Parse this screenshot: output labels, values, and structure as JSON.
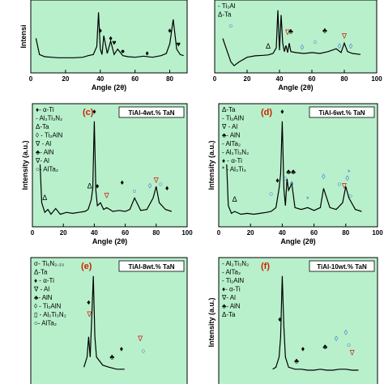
{
  "chart_data": [
    {
      "id": "a",
      "type": "line",
      "panel_label": "",
      "title": "",
      "xlabel": "Angle (2θ)",
      "ylabel": "Intensi",
      "xticks": [
        "0",
        "20",
        "40",
        "60",
        "80"
      ],
      "xlim": [
        0,
        90
      ],
      "legend": [],
      "x": [
        3,
        5,
        8,
        12,
        16,
        20,
        25,
        30,
        33,
        36,
        38,
        39,
        40,
        41,
        42,
        44,
        46,
        48,
        50,
        53,
        56,
        60,
        65,
        70,
        75,
        78,
        80,
        82,
        84,
        86,
        88
      ],
      "y": [
        50,
        20,
        16,
        15,
        14,
        14,
        14,
        15,
        18,
        20,
        35,
        98,
        30,
        20,
        55,
        22,
        45,
        20,
        30,
        18,
        16,
        15,
        17,
        15,
        18,
        22,
        40,
        85,
        30,
        20,
        18
      ],
      "markers": [
        {
          "x": 40,
          "y": 60,
          "symbol": "♦"
        },
        {
          "x": 46,
          "y": 46,
          "symbol": "♦"
        },
        {
          "x": 48,
          "y": 38,
          "symbol": "♥"
        },
        {
          "x": 53,
          "y": 22,
          "symbol": "●"
        },
        {
          "x": 67,
          "y": 18,
          "symbol": "♦"
        },
        {
          "x": 80,
          "y": 60,
          "symbol": "♦"
        },
        {
          "x": 85,
          "y": 35,
          "symbol": "♥"
        }
      ]
    },
    {
      "id": "b",
      "type": "line",
      "panel_label": "",
      "title": "",
      "xlabel": "Angle (2θ)",
      "ylabel": "",
      "xticks": [
        "0",
        "20",
        "40",
        "60",
        "80",
        "100"
      ],
      "xlim": [
        0,
        100
      ],
      "legend": [
        "- Ti₃Al",
        "Δ-Ta"
      ],
      "x": [
        5,
        8,
        10,
        12,
        15,
        20,
        25,
        30,
        33,
        36,
        38,
        39,
        40,
        41,
        42,
        43,
        44,
        45,
        46,
        47,
        50,
        55,
        60,
        65,
        70,
        75,
        78,
        80,
        82,
        85,
        90
      ],
      "y": [
        40,
        10,
        -10,
        -18,
        -10,
        0,
        3,
        4,
        5,
        8,
        20,
        100,
        15,
        90,
        30,
        12,
        25,
        10,
        30,
        12,
        10,
        8,
        10,
        8,
        12,
        18,
        10,
        30,
        12,
        8,
        6
      ],
      "markers": [
        {
          "x": 33,
          "y": 18,
          "symbol": "Δ"
        },
        {
          "x": 45,
          "y": 48,
          "symbol": "∇"
        },
        {
          "x": 47,
          "y": 50,
          "symbol": "♣"
        },
        {
          "x": 54,
          "y": 16,
          "symbol": "◊"
        },
        {
          "x": 62,
          "y": 28,
          "symbol": "○"
        },
        {
          "x": 68,
          "y": 52,
          "symbol": "♣"
        },
        {
          "x": 77,
          "y": 18,
          "symbol": "◊"
        },
        {
          "x": 80,
          "y": 40,
          "symbol": "∇"
        },
        {
          "x": 84,
          "y": 18,
          "symbol": "◊"
        },
        {
          "x": 10,
          "y": 62,
          "symbol": "○"
        }
      ]
    },
    {
      "id": "c",
      "type": "line",
      "panel_label": "(c)",
      "title": "TiAl-4wt.% TaN",
      "xlabel": "Angle (2θ)",
      "ylabel": "Intensity (a.u.)",
      "xticks": [
        "0",
        "20",
        "40",
        "60",
        "80",
        "100"
      ],
      "xlim": [
        0,
        100
      ],
      "legend": [
        "♦- α-Ti",
        "- Al₂Ti₃N₂",
        "Δ-Ta",
        "◊ - Ti₂AlN",
        "∇ - Al",
        "♣- AlN",
        "∇- Al",
        "○- AlTa₂"
      ],
      "x": [
        5,
        6,
        8,
        10,
        12,
        15,
        18,
        22,
        26,
        30,
        34,
        36,
        38,
        39,
        40,
        41,
        42,
        44,
        46,
        48,
        52,
        56,
        60,
        63,
        66,
        70,
        74,
        78,
        80,
        82,
        86,
        90
      ],
      "y": [
        55,
        15,
        5,
        8,
        3,
        9,
        3,
        5,
        4,
        5,
        6,
        8,
        18,
        30,
        100,
        28,
        12,
        15,
        8,
        10,
        6,
        7,
        6,
        8,
        20,
        7,
        8,
        20,
        32,
        15,
        8,
        6
      ],
      "markers": [
        {
          "x": 40,
          "y": 108,
          "symbol": "♦"
        },
        {
          "x": 37,
          "y": 30,
          "symbol": "Δ"
        },
        {
          "x": 42,
          "y": 30,
          "symbol": "♦"
        },
        {
          "x": 48,
          "y": 20,
          "symbol": "∇"
        },
        {
          "x": 58,
          "y": 34,
          "symbol": "♦"
        },
        {
          "x": 66,
          "y": 25,
          "symbol": "○"
        },
        {
          "x": 76,
          "y": 30,
          "symbol": "◊"
        },
        {
          "x": 80,
          "y": 36,
          "symbol": "∇"
        },
        {
          "x": 83,
          "y": 32,
          "symbol": "○"
        },
        {
          "x": 8,
          "y": 18,
          "symbol": "Δ"
        },
        {
          "x": 87,
          "y": 28,
          "symbol": "♦"
        }
      ]
    },
    {
      "id": "d",
      "type": "line",
      "panel_label": "(d)",
      "title": "TiAl-6wt.% TaN",
      "xlabel": "Angle (2θ)",
      "ylabel": "Intensity (a.u.)",
      "xticks": [
        "0",
        "20",
        "40",
        "60",
        "80",
        "100"
      ],
      "xlim": [
        0,
        100
      ],
      "legend": [
        "Δ-Ta",
        "- Ti₂AlN",
        "∇ - Al",
        "♣- AlN",
        "- AlTa₂",
        "- Al₂Ti₃N₂",
        "♦ - α-Ti",
        "* - Al₃Ti₃"
      ],
      "x": [
        5,
        6,
        8,
        10,
        14,
        18,
        22,
        26,
        30,
        33,
        36,
        38,
        39,
        40,
        41,
        42,
        43,
        44,
        46,
        48,
        52,
        56,
        60,
        64,
        66,
        70,
        74,
        78,
        80,
        82,
        86,
        90
      ],
      "y": [
        55,
        12,
        4,
        6,
        3,
        4,
        3,
        4,
        5,
        6,
        10,
        30,
        45,
        100,
        30,
        12,
        40,
        28,
        35,
        10,
        8,
        10,
        7,
        10,
        30,
        10,
        8,
        15,
        32,
        20,
        8,
        6
      ],
      "markers": [
        {
          "x": 40,
          "y": 108,
          "symbol": "♦"
        },
        {
          "x": 44,
          "y": 45,
          "symbol": "♣"
        },
        {
          "x": 47,
          "y": 45,
          "symbol": "♣"
        },
        {
          "x": 46,
          "y": 32,
          "symbol": "◊"
        },
        {
          "x": 42,
          "y": 38,
          "symbol": "○"
        },
        {
          "x": 37,
          "y": 36,
          "symbol": "♦"
        },
        {
          "x": 33,
          "y": 22,
          "symbol": "○"
        },
        {
          "x": 56,
          "y": 16,
          "symbol": "*"
        },
        {
          "x": 66,
          "y": 40,
          "symbol": "◊"
        },
        {
          "x": 76,
          "y": 32,
          "symbol": "○"
        },
        {
          "x": 79,
          "y": 30,
          "symbol": "∇"
        },
        {
          "x": 81,
          "y": 38,
          "symbol": "◊"
        },
        {
          "x": 82,
          "y": 44,
          "symbol": "*"
        },
        {
          "x": 83,
          "y": 20,
          "symbol": "○"
        },
        {
          "x": 10,
          "y": 16,
          "symbol": "Δ"
        }
      ]
    },
    {
      "id": "e",
      "type": "line",
      "panel_label": "(e)",
      "title": "TiAl-8wt.% TaN",
      "xlabel": "",
      "ylabel": "",
      "xticks": [],
      "xlim": [
        0,
        100
      ],
      "legend": [
        "σ- Ti₆N₂.₃₃",
        "Δ-Ta",
        "♦ - α-Ti",
        "∇ - Al",
        "♣- AlN",
        "◊ - Ti₂AlN",
        "▯ - Al₂Ti₃N₂",
        "○- AlTa₂"
      ],
      "x": [
        34,
        36,
        37,
        38,
        39,
        40,
        41,
        42,
        46,
        50,
        55,
        60
      ],
      "y": [
        10,
        20,
        40,
        20,
        60,
        100,
        40,
        20,
        12,
        10,
        8,
        8
      ],
      "markers": [
        {
          "x": 37,
          "y": 72,
          "symbol": "♦"
        },
        {
          "x": 37.5,
          "y": 60,
          "symbol": "∇"
        },
        {
          "x": 52,
          "y": 18,
          "symbol": "♣"
        },
        {
          "x": 58,
          "y": 26,
          "symbol": "♦"
        },
        {
          "x": 70,
          "y": 36,
          "symbol": "∇"
        },
        {
          "x": 72,
          "y": 24,
          "symbol": "○"
        }
      ]
    },
    {
      "id": "f",
      "type": "line",
      "panel_label": "(f)",
      "title": "TiAl-10wt.% TaN",
      "xlabel": "",
      "ylabel": "Intensity (a.u.)",
      "xticks": [],
      "xlim": [
        0,
        100
      ],
      "legend": [
        "- Al₂Ti₃N₂",
        "- AlTa₂",
        "- Ti₂AlN",
        "♦- α-Ti",
        "∇- Al",
        "♣- AlN",
        "Δ-Ta"
      ],
      "x": [
        34,
        36,
        38,
        39,
        40,
        41,
        42,
        44,
        48,
        52,
        56,
        60,
        64,
        68,
        72,
        76,
        80,
        84,
        88
      ],
      "y": [
        8,
        10,
        20,
        40,
        100,
        50,
        20,
        10,
        8,
        8,
        7,
        7,
        8,
        7,
        7,
        8,
        8,
        7,
        7
      ],
      "markers": [
        {
          "x": 38.5,
          "y": 55,
          "symbol": "♦"
        },
        {
          "x": 49,
          "y": 14,
          "symbol": "♣"
        },
        {
          "x": 53,
          "y": 26,
          "symbol": "♦"
        },
        {
          "x": 67,
          "y": 28,
          "symbol": "♣"
        },
        {
          "x": 74,
          "y": 36,
          "symbol": "◊"
        },
        {
          "x": 80,
          "y": 42,
          "symbol": "◊"
        },
        {
          "x": 82,
          "y": 30,
          "symbol": "○"
        },
        {
          "x": 84,
          "y": 22,
          "symbol": "∇"
        }
      ]
    }
  ]
}
